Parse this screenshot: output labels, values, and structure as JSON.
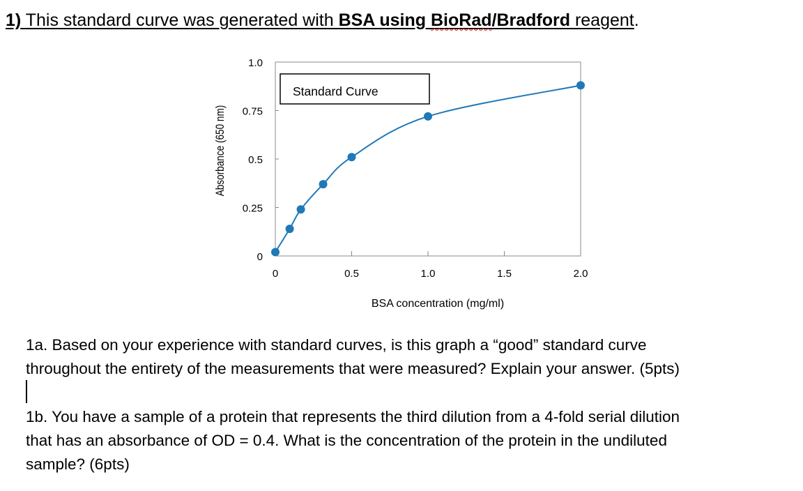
{
  "heading": {
    "num": "1)",
    "pre": "This standard curve was generated with ",
    "bsa": "BSA using ",
    "biorad": "BioRad",
    "slash": "/Bradford",
    "post": " reagent",
    "dot": "."
  },
  "chart_data": {
    "type": "line",
    "title": "Standard Curve",
    "xlabel": "BSA concentration (mg/ml)",
    "ylabel": "Absorbance (650 nm)",
    "xlim": [
      0,
      2.0
    ],
    "ylim": [
      0,
      1.0
    ],
    "x_ticks": [
      "0",
      "0.5",
      "1.0",
      "1.5",
      "2.0"
    ],
    "y_ticks": [
      "0",
      "0.25",
      "0.5",
      "0.75",
      "1.0"
    ],
    "series": [
      {
        "x": [
          0,
          0.094,
          0.167,
          0.313,
          0.5,
          1.0,
          2.0
        ],
        "y": [
          0.02,
          0.14,
          0.24,
          0.37,
          0.51,
          0.72,
          0.88
        ],
        "color": "#1f78b8"
      }
    ],
    "grid": false,
    "legend": "none"
  },
  "questions": {
    "q1a_line1": "1a. Based on your experience with standard curves, is this graph a “good” standard curve",
    "q1a_line2": "throughout the entirety of the measurements that were measured?  Explain your answer. (5pts)",
    "q1b_line1": "1b. You have a sample of a protein that represents the third dilution from a 4-fold serial dilution",
    "q1b_line2": "that has an absorbance of OD = 0.4.  What is the concentration of the protein in the undiluted",
    "q1b_line3": "sample?  (6pts)"
  }
}
